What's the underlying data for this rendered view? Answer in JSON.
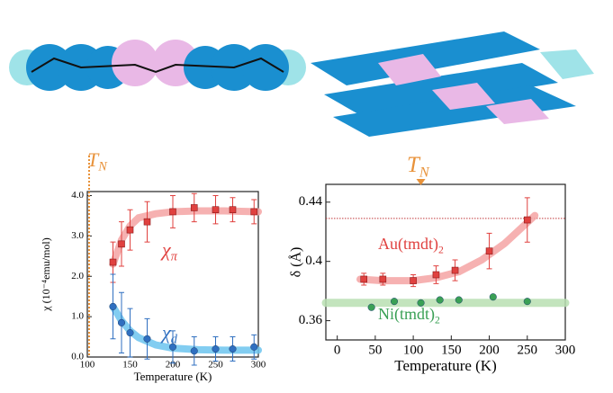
{
  "chart_data": [
    {
      "type": "scatter",
      "x_label": "Temperature (K)",
      "y_label": "χ (10⁻⁴emu/mol)",
      "xlim": [
        100,
        300
      ],
      "xticks": [
        100,
        150,
        200,
        250,
        300
      ],
      "ylim": [
        0,
        4.1
      ],
      "yticks": [
        {
          "value": 0,
          "label": "0.0"
        },
        {
          "value": 1,
          "label": "1.0"
        },
        {
          "value": 2,
          "label": "2.0"
        },
        {
          "value": 3,
          "label": "3.0"
        },
        {
          "value": 4,
          "label": "4.0"
        }
      ],
      "annotation": {
        "main": "T",
        "sub": "N",
        "color": "#e8923a"
      },
      "vlines": [
        {
          "value": 100,
          "color": "#e8923a"
        }
      ],
      "series": [
        {
          "label": {
            "main": "χ",
            "sub": "π"
          },
          "color": "#e0413f",
          "fit_color": "#f5a3a3",
          "marker": "square",
          "x": [
            130,
            140,
            150,
            170,
            200,
            225,
            250,
            270,
            295
          ],
          "values": [
            2.35,
            2.8,
            3.15,
            3.35,
            3.6,
            3.7,
            3.65,
            3.65,
            3.6
          ],
          "errors": [
            0.5,
            0.55,
            0.5,
            0.5,
            0.4,
            0.35,
            0.35,
            0.3,
            0.3
          ],
          "fit": {
            "x": [
              130,
              140,
              150,
              160,
              180,
              200,
              230,
              260,
              300
            ],
            "values": [
              2.3,
              2.9,
              3.25,
              3.45,
              3.55,
              3.6,
              3.62,
              3.62,
              3.6
            ]
          }
        },
        {
          "label": {
            "main": "χ",
            "sub": "d"
          },
          "color": "#2f6fc0",
          "fit_color": "#6cc4ef",
          "marker": "circle",
          "x": [
            130,
            140,
            150,
            170,
            200,
            225,
            250,
            270,
            295
          ],
          "values": [
            1.25,
            0.85,
            0.6,
            0.45,
            0.25,
            0.15,
            0.2,
            0.2,
            0.25
          ],
          "errors": [
            0.8,
            0.75,
            0.6,
            0.5,
            0.4,
            0.35,
            0.3,
            0.3,
            0.3
          ],
          "fit": {
            "x": [
              130,
              140,
              150,
              160,
              180,
              200,
              230,
              260,
              300
            ],
            "values": [
              1.25,
              0.9,
              0.65,
              0.48,
              0.3,
              0.22,
              0.18,
              0.17,
              0.17
            ]
          }
        }
      ]
    },
    {
      "type": "scatter",
      "x_label": "Temperature (K)",
      "y_label": "δ (Å)",
      "xlim": [
        -15,
        300
      ],
      "xticks": [
        0,
        50,
        100,
        150,
        200,
        250,
        300
      ],
      "ylim": [
        0.347,
        0.452
      ],
      "yticks": [
        0.36,
        0.4,
        0.44
      ],
      "annotation": {
        "main": "T",
        "sub": "N",
        "color": "#e8923a"
      },
      "tn_arrow": 110,
      "hlines": [
        {
          "value": 0.429,
          "color": "#c0393b"
        }
      ],
      "series": [
        {
          "label": {
            "main": "Au(tmdt)",
            "sub": "2"
          },
          "color": "#e0413f",
          "fit_color": "#f5a3a3",
          "marker": "square",
          "x": [
            35,
            60,
            100,
            130,
            155,
            200,
            250
          ],
          "values": [
            0.388,
            0.388,
            0.387,
            0.391,
            0.394,
            0.407,
            0.428
          ],
          "errors": [
            0.004,
            0.004,
            0.004,
            0.006,
            0.007,
            0.012,
            0.015
          ],
          "fit": {
            "x": [
              30,
              60,
              100,
              130,
              160,
              190,
              220,
              260
            ],
            "values": [
              0.388,
              0.387,
              0.387,
              0.389,
              0.393,
              0.401,
              0.412,
              0.431
            ]
          }
        },
        {
          "label": {
            "main": "Ni(tmdt)",
            "sub": "2"
          },
          "color": "#3aa055",
          "fit_color": "#b9dfb2",
          "marker": "circle",
          "x": [
            45,
            75,
            110,
            135,
            160,
            205,
            250
          ],
          "values": [
            0.369,
            0.373,
            0.372,
            0.374,
            0.374,
            0.376,
            0.373
          ],
          "fit": {
            "x": [
              -15,
              300
            ],
            "values": [
              0.372,
              0.372
            ]
          }
        }
      ]
    }
  ]
}
